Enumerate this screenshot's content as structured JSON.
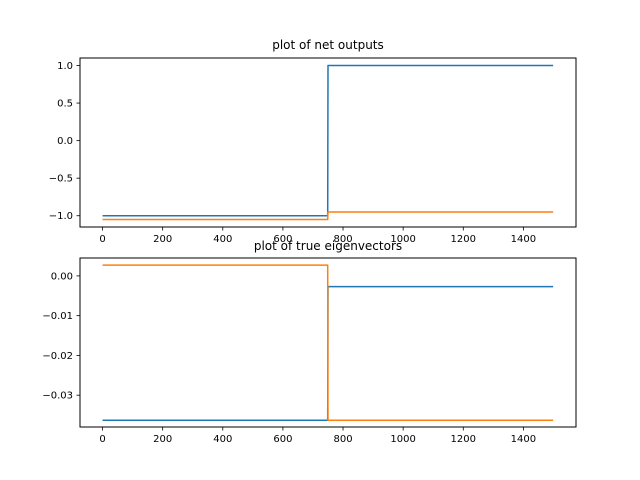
{
  "chart_data": [
    {
      "type": "line",
      "title": "plot of net outputs",
      "xlabel": "",
      "ylabel": "",
      "xlim": [
        -75,
        1575
      ],
      "ylim": [
        -1.15,
        1.1
      ],
      "xticks": [
        0,
        200,
        400,
        600,
        800,
        1000,
        1200,
        1400
      ],
      "xtick_labels": [
        "0",
        "200",
        "400",
        "600",
        "800",
        "1000",
        "1200",
        "1400"
      ],
      "yticks": [
        -1.0,
        -0.5,
        0.0,
        0.5,
        1.0
      ],
      "ytick_labels": [
        "−1.0",
        "−0.5",
        "0.0",
        "0.5",
        "1.0"
      ],
      "grid": false,
      "series": [
        {
          "color": "#1f77b4",
          "x": [
            0,
            749,
            750,
            1499
          ],
          "y": [
            -1.0,
            -1.0,
            1.0,
            1.0
          ]
        },
        {
          "color": "#ff7f0e",
          "x": [
            0,
            749,
            750,
            1499
          ],
          "y": [
            -1.05,
            -1.05,
            -0.95,
            -0.95
          ]
        }
      ]
    },
    {
      "type": "line",
      "title": "plot of true eigenvectors",
      "xlabel": "",
      "ylabel": "",
      "xlim": [
        -75,
        1575
      ],
      "ylim": [
        -0.038,
        0.0045
      ],
      "xticks": [
        0,
        200,
        400,
        600,
        800,
        1000,
        1200,
        1400
      ],
      "xtick_labels": [
        "0",
        "200",
        "400",
        "600",
        "800",
        "1000",
        "1200",
        "1400"
      ],
      "yticks": [
        -0.03,
        -0.02,
        -0.01,
        0.0
      ],
      "ytick_labels": [
        "−0.03",
        "−0.02",
        "−0.01",
        "0.00"
      ],
      "grid": false,
      "series": [
        {
          "color": "#1f77b4",
          "x": [
            0,
            749,
            750,
            1499
          ],
          "y": [
            -0.0363,
            -0.0363,
            -0.0027,
            -0.0027
          ]
        },
        {
          "color": "#ff7f0e",
          "x": [
            0,
            749,
            750,
            1499
          ],
          "y": [
            0.0027,
            0.0027,
            -0.0363,
            -0.0363
          ]
        }
      ]
    }
  ]
}
